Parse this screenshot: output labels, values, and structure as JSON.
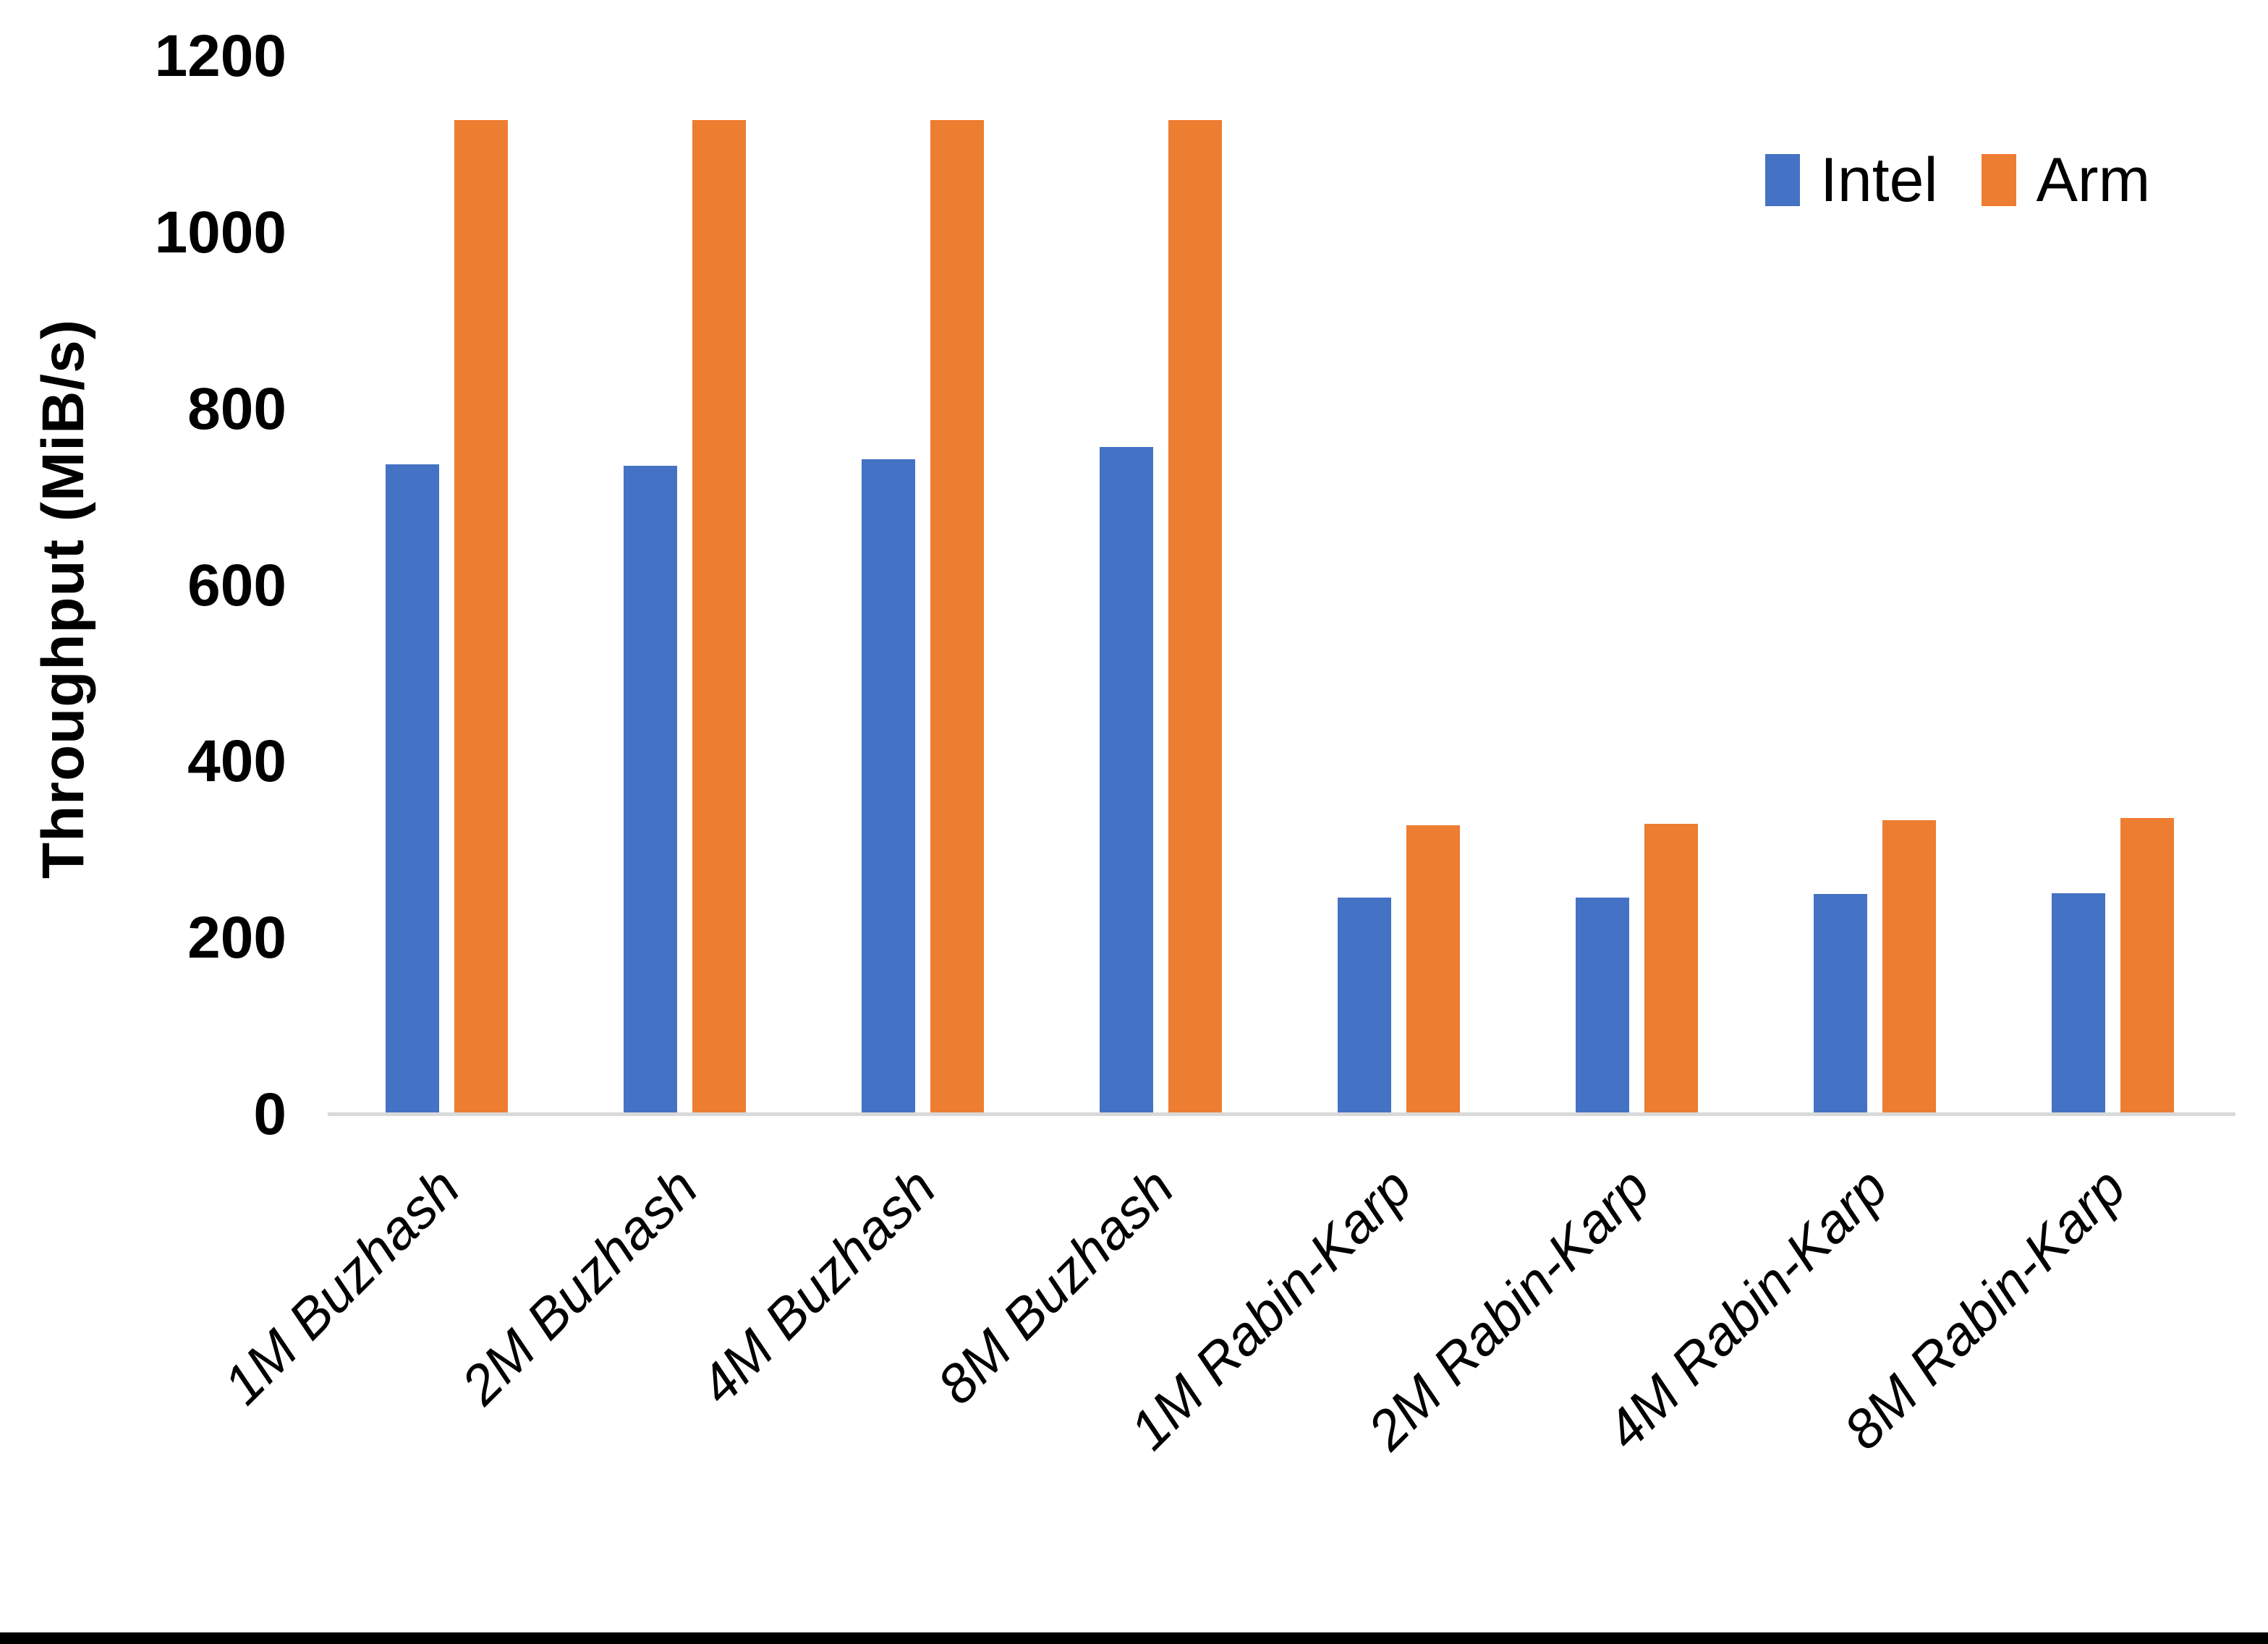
{
  "chart_data": {
    "type": "bar",
    "title": "",
    "ylabel": "Throughput (MiB/s)",
    "xlabel": "",
    "ylim": [
      0,
      1200
    ],
    "yticks": [
      0,
      200,
      400,
      600,
      800,
      1000,
      1200
    ],
    "grid": false,
    "legend_position": "top-right",
    "categories": [
      "1M Buzhash",
      "2M Buzhash",
      "4M Buzhash",
      "8M Buzhash",
      "1M Rabin-Karp",
      "2M Rabin-Karp",
      "4M Rabin-Karp",
      "8M Rabin-Karp"
    ],
    "series": [
      {
        "name": "Intel",
        "color": "#4472C4",
        "values": [
          737,
          736,
          743,
          757,
          246,
          246,
          250,
          251
        ]
      },
      {
        "name": "Arm",
        "color": "#ED7D31",
        "values": [
          1128,
          1128,
          1128,
          1128,
          328,
          330,
          334,
          336
        ]
      }
    ],
    "colors": {
      "axis_line": "#d9d9d9",
      "text": "#000000",
      "bottom_frame": "#000000",
      "background": "#ffffff"
    }
  }
}
